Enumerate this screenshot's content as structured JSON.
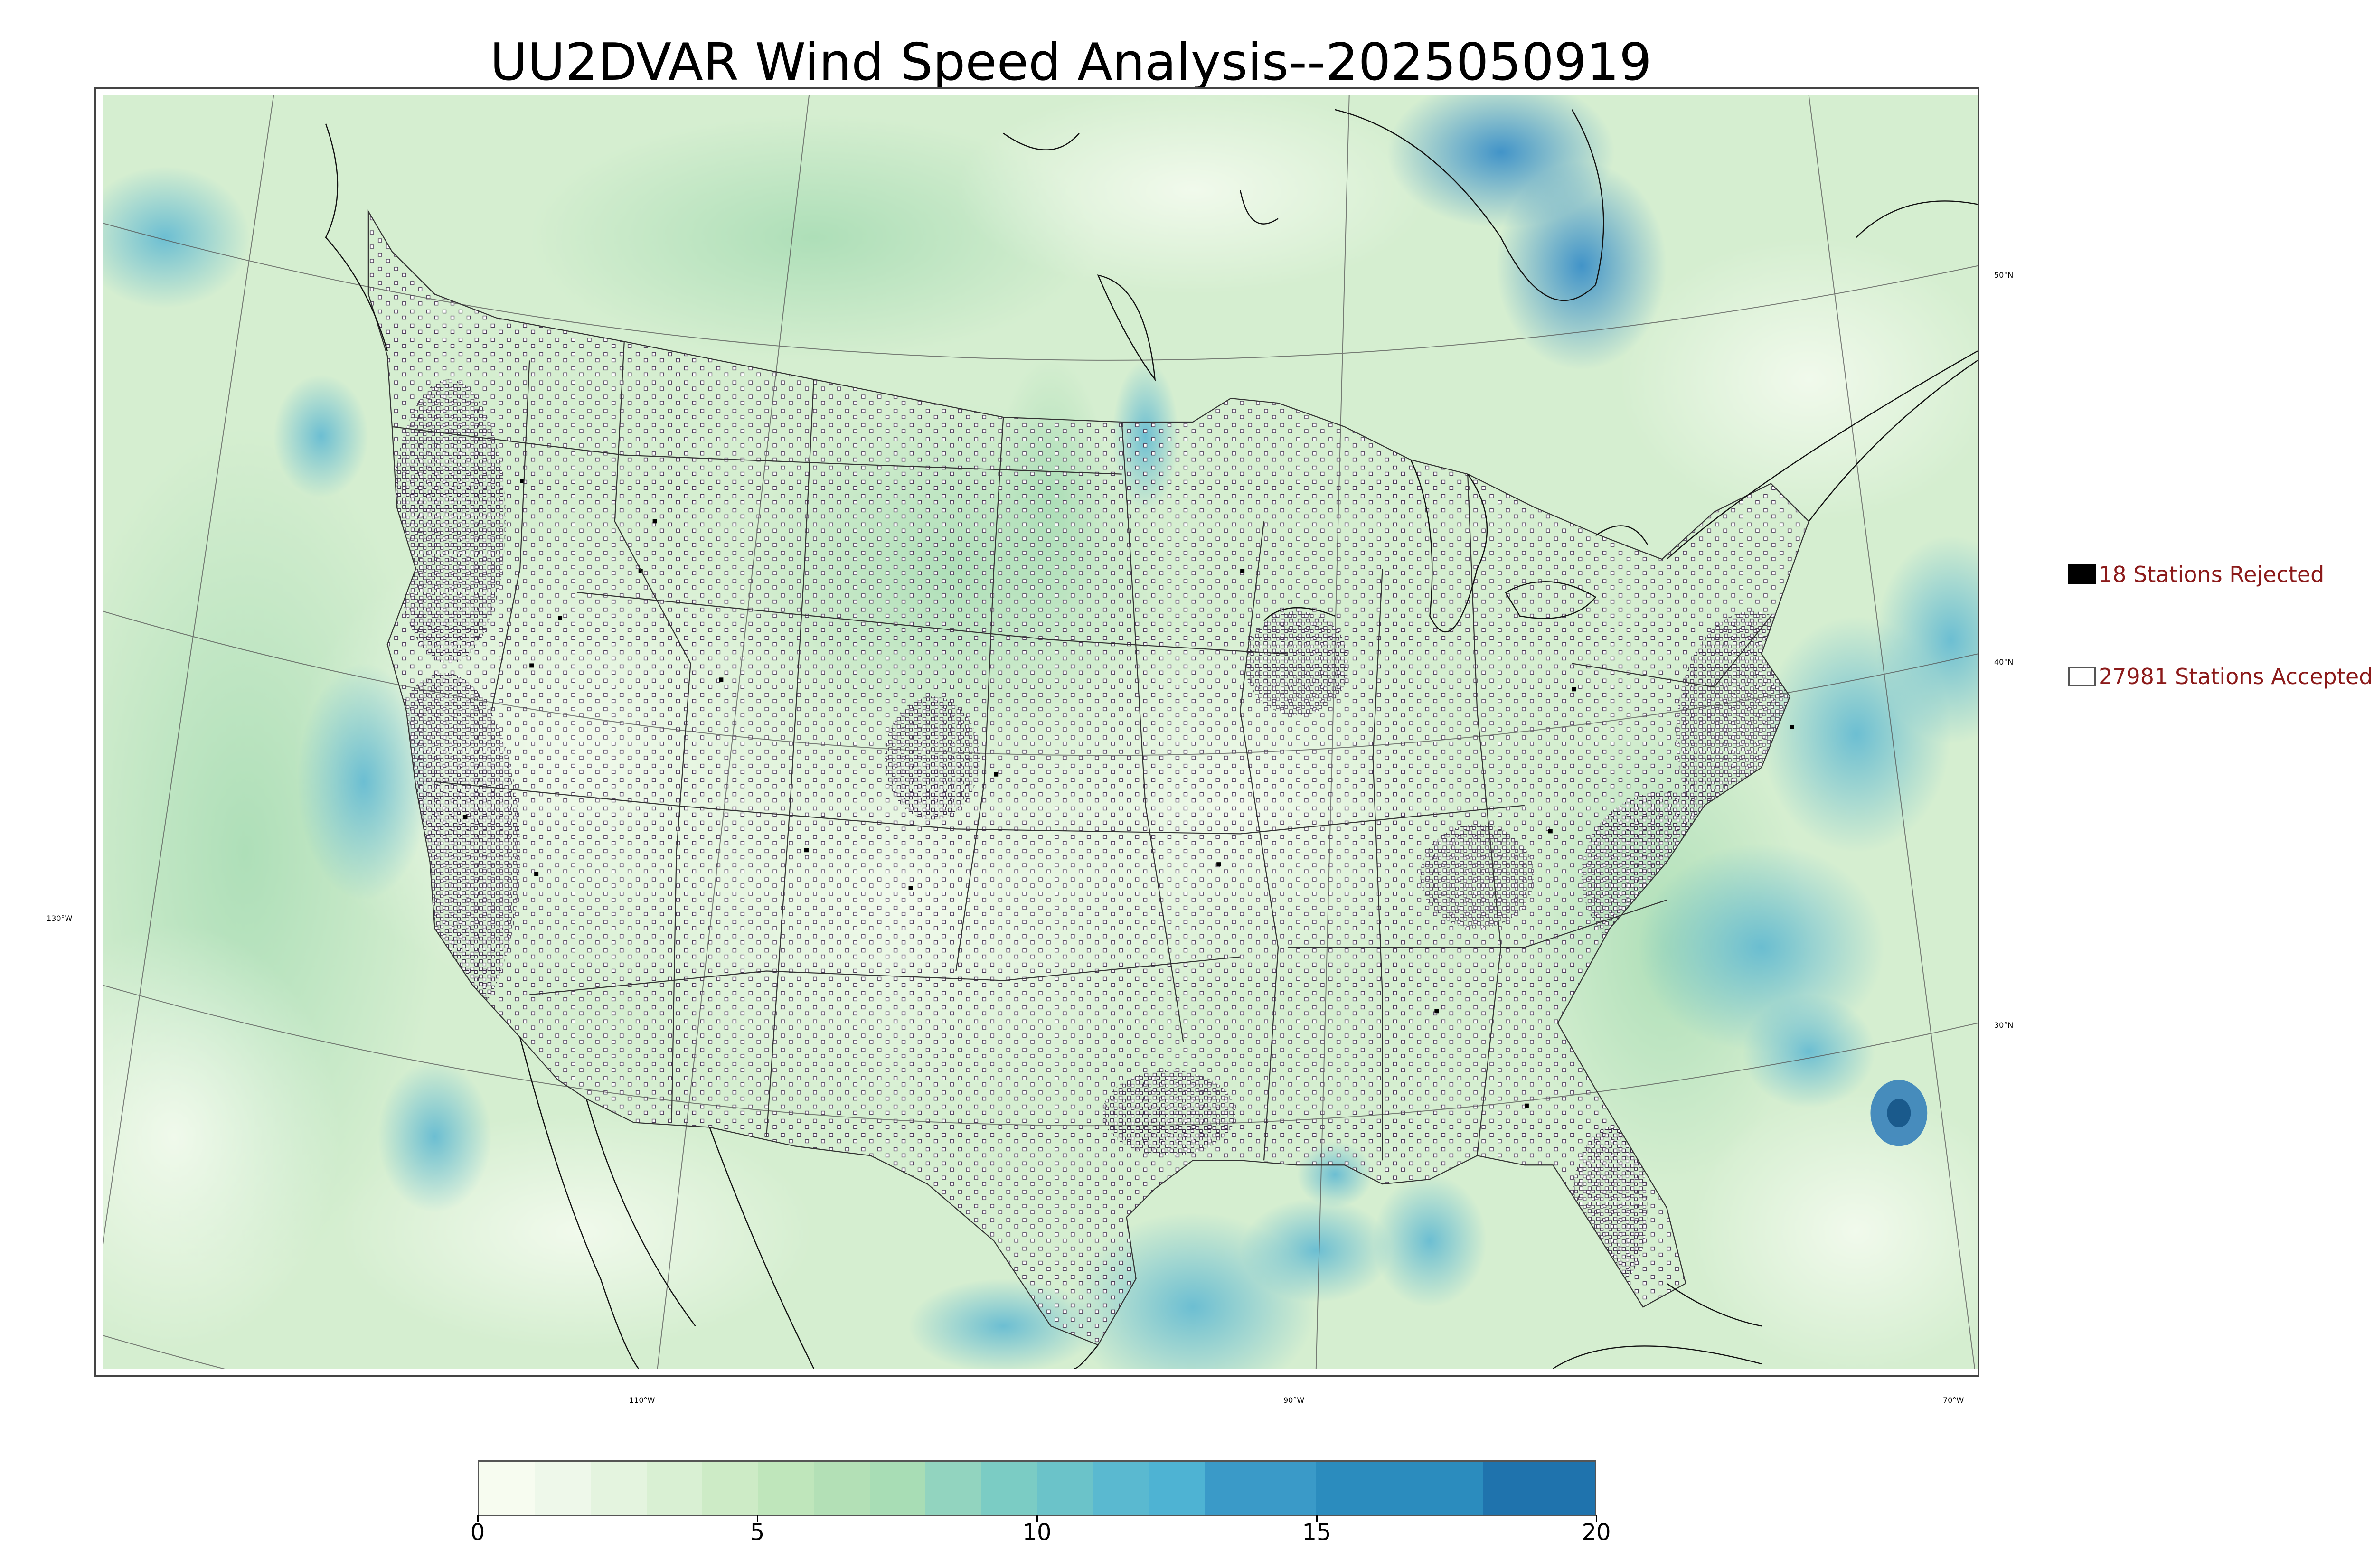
{
  "title": "UU2DVAR Wind Speed Analysis--2025050919",
  "grid_labels": {
    "lat_50": "50°N",
    "lat_40": "40°N",
    "lat_30": "30°N",
    "lon_130": "130°W",
    "lon_110": "110°W",
    "lon_90": "90°W",
    "lon_70": "70°W"
  },
  "legend": {
    "rejected": {
      "count": 18,
      "label": "18 Stations Rejected",
      "color": "#000000"
    },
    "accepted": {
      "count": 27981,
      "label": "27981 Stations Accepted",
      "color": "#ffffff"
    }
  },
  "colorbar": {
    "min": 0,
    "max": 20,
    "ticks": [
      "0",
      "5",
      "10",
      "15",
      "20"
    ],
    "levels": [
      0,
      1,
      2,
      3,
      4,
      5,
      6,
      7,
      8,
      9,
      10,
      11,
      12,
      13,
      15,
      18,
      20
    ],
    "colors": [
      "#f7fcf0",
      "#eef8ea",
      "#e4f4df",
      "#d9f0d3",
      "#cdebc6",
      "#bfe6bb",
      "#b3e0b6",
      "#a8ddb5",
      "#92d4bf",
      "#7bccc4",
      "#6bc3c9",
      "#5ab9d0",
      "#4eb3d3",
      "#3a9ac8",
      "#2b8cbe",
      "#1f73ad",
      "#16568a"
    ]
  },
  "map": {
    "background_colors": {
      "low": "#eaf6e3",
      "mid": "#c3e7c0",
      "high": "#4a9fd0"
    },
    "station_marker": "hollow square",
    "coastline_color": "#000000",
    "border_color": "#222222"
  }
}
